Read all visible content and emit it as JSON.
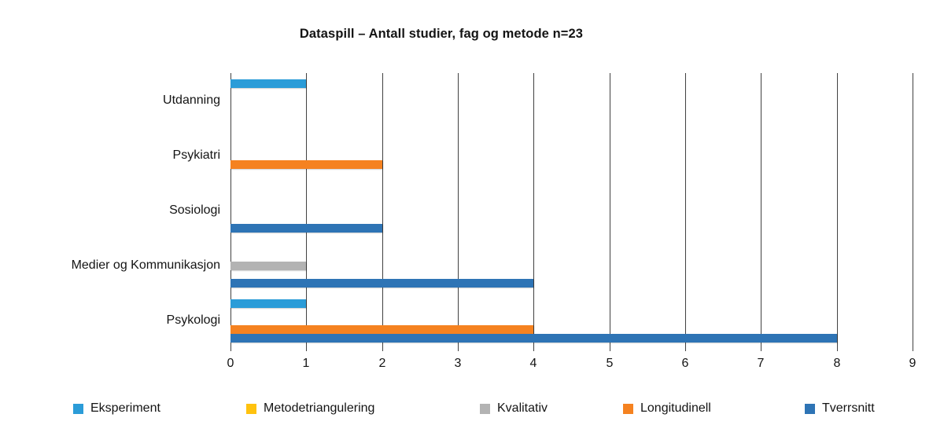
{
  "page": {
    "background": "#ffffff",
    "text_color": "#141414",
    "gridline_color": "#414141"
  },
  "chart_data": {
    "type": "bar",
    "orientation": "horizontal",
    "title": "Dataspill – Antall studier, fag og metode n=23",
    "categories": [
      "Utdanning",
      "Psykiatri",
      "Sosiologi",
      "Medier og Kommunikasjon",
      "Psykologi"
    ],
    "series": [
      {
        "name": "Eksperiment",
        "color": "#2B9CD8",
        "values": [
          1,
          0,
          0,
          0,
          1
        ]
      },
      {
        "name": "Metodetriangulering",
        "color": "#FFC20E",
        "values": [
          0,
          0,
          0,
          0,
          0
        ]
      },
      {
        "name": "Kvalitativ",
        "color": "#B3B3B3",
        "values": [
          0,
          0,
          0,
          1,
          0
        ]
      },
      {
        "name": "Longitudinell",
        "color": "#F58220",
        "values": [
          0,
          2,
          0,
          0,
          4
        ]
      },
      {
        "name": "Tverrsnitt",
        "color": "#2E74B5",
        "values": [
          0,
          0,
          2,
          4,
          8
        ]
      }
    ],
    "xlim": [
      0,
      9
    ],
    "xticks": [
      "0",
      "1",
      "2",
      "3",
      "4",
      "5",
      "6",
      "7",
      "8",
      "9"
    ],
    "grid": "vertical-only",
    "legend_position": "bottom",
    "total_n": "23"
  }
}
